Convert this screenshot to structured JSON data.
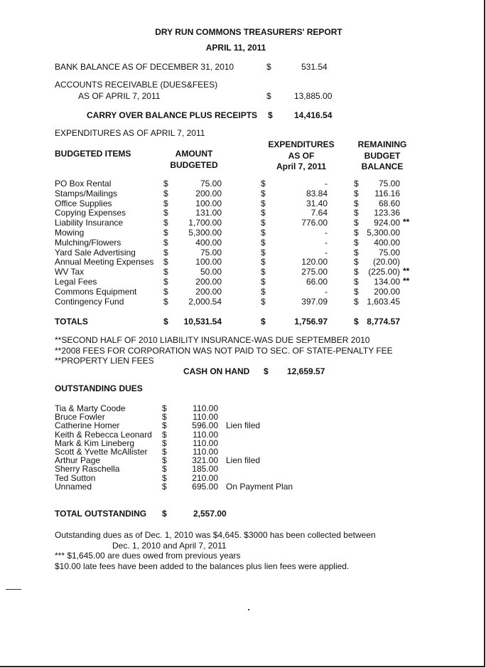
{
  "title": "DRY RUN COMMONS TREASURERS' REPORT",
  "date": "APRIL 11, 2011",
  "summary": {
    "bank_balance_label": "BANK BALANCE AS OF DECEMBER 31, 2010",
    "bank_balance_value": "531.54",
    "receivable_label_1": "ACCOUNTS RECEIVABLE (DUES&FEES)",
    "receivable_label_2": "AS OF APRIL 7, 2011",
    "receivable_value": "13,885.00",
    "carry_over_label": "CARRY OVER BALANCE PLUS RECEIPTS",
    "carry_over_value": "14,416.54",
    "currency": "$"
  },
  "expenditures": {
    "heading": "EXPENDITURES AS OF APRIL 7, 2011",
    "headers": {
      "items": "BUDGETED ITEMS",
      "amount_1": "AMOUNT",
      "amount_2": "BUDGETED",
      "exp_1": "EXPENDITURES",
      "exp_2": "AS OF",
      "exp_3": "April 7, 2011",
      "rem_1": "REMAINING",
      "rem_2": "BUDGET",
      "rem_3": "BALANCE"
    },
    "rows": [
      {
        "item": "PO Box Rental",
        "budgeted": "75.00",
        "spent": "-",
        "remaining": "75.00",
        "note": ""
      },
      {
        "item": "Stamps/Mailings",
        "budgeted": "200.00",
        "spent": "83.84",
        "remaining": "116.16",
        "note": ""
      },
      {
        "item": "Office Supplies",
        "budgeted": "100.00",
        "spent": "31.40",
        "remaining": "68.60",
        "note": ""
      },
      {
        "item": "Copying Expenses",
        "budgeted": "131.00",
        "spent": "7.64",
        "remaining": "123.36",
        "note": ""
      },
      {
        "item": "Liability Insurance",
        "budgeted": "1,700.00",
        "spent": "776.00",
        "remaining": "924.00",
        "note": "**"
      },
      {
        "item": "Mowing",
        "budgeted": "5,300.00",
        "spent": "-",
        "remaining": "5,300.00",
        "note": ""
      },
      {
        "item": "Mulching/Flowers",
        "budgeted": "400.00",
        "spent": "-",
        "remaining": "400.00",
        "note": ""
      },
      {
        "item": "Yard Sale Advertising",
        "budgeted": "75.00",
        "spent": "-",
        "remaining": "75.00",
        "note": ""
      },
      {
        "item": "Annual Meeting Expenses",
        "budgeted": "100.00",
        "spent": "120.00",
        "remaining": "(20.00)",
        "note": ""
      },
      {
        "item": "WV Tax",
        "budgeted": "50.00",
        "spent": "275.00",
        "remaining": "(225.00)",
        "note": "**"
      },
      {
        "item": "Legal Fees",
        "budgeted": "200.00",
        "spent": "66.00",
        "remaining": "134.00",
        "note": "**"
      },
      {
        "item": "Commons Equipment",
        "budgeted": "200.00",
        "spent": "-",
        "remaining": "200.00",
        "note": ""
      },
      {
        "item": "Contingency Fund",
        "budgeted": "2,000.54",
        "spent": "397.09",
        "remaining": "1,603.45",
        "note": ""
      }
    ],
    "totals": {
      "label": "TOTALS",
      "budgeted": "10,531.54",
      "spent": "1,756.97",
      "remaining": "8,774.57"
    }
  },
  "footnotes": [
    "**SECOND HALF OF 2010 LIABILITY INSURANCE-WAS DUE SEPTEMBER 2010",
    "**2008 FEES FOR CORPORATION WAS NOT PAID TO SEC. OF STATE-PENALTY FEE",
    "**PROPERTY LIEN FEES"
  ],
  "cash_on_hand": {
    "label": "CASH ON HAND",
    "value": "12,659.57"
  },
  "dues": {
    "heading": "OUTSTANDING DUES",
    "rows": [
      {
        "name": "Tia & Marty Coode",
        "amount": "110.00",
        "note": ""
      },
      {
        "name": "Bruce Fowler",
        "amount": "110.00",
        "note": ""
      },
      {
        "name": "Catherine Homer",
        "amount": "596.00",
        "note": "Lien filed"
      },
      {
        "name": "Keith & Rebecca Leonard",
        "amount": "110.00",
        "note": ""
      },
      {
        "name": "Mark & Kim Lineberg",
        "amount": "110.00",
        "note": ""
      },
      {
        "name": "Scott & Yvette McAllister",
        "amount": "110.00",
        "note": ""
      },
      {
        "name": "Arthur Page",
        "amount": "321.00",
        "note": "Lien filed"
      },
      {
        "name": "Sherry Raschella",
        "amount": "185.00",
        "note": ""
      },
      {
        "name": "Ted Sutton",
        "amount": "210.00",
        "note": ""
      },
      {
        "name": "Unnamed",
        "amount": "695.00",
        "note": "On Payment Plan"
      }
    ],
    "total_label": "TOTAL OUTSTANDING",
    "total_value": "2,557.00"
  },
  "notes": {
    "line_1": "Outstanding dues as of Dec. 1, 2010 was $4,645.  $3000 has been collected between",
    "line_2": "Dec. 1, 2010 and April 7, 2011",
    "line_3": "*** $1,645.00 are dues owed from previous years",
    "line_4": "$10.00 late fees have been added to the balances plus lien fees were applied."
  }
}
